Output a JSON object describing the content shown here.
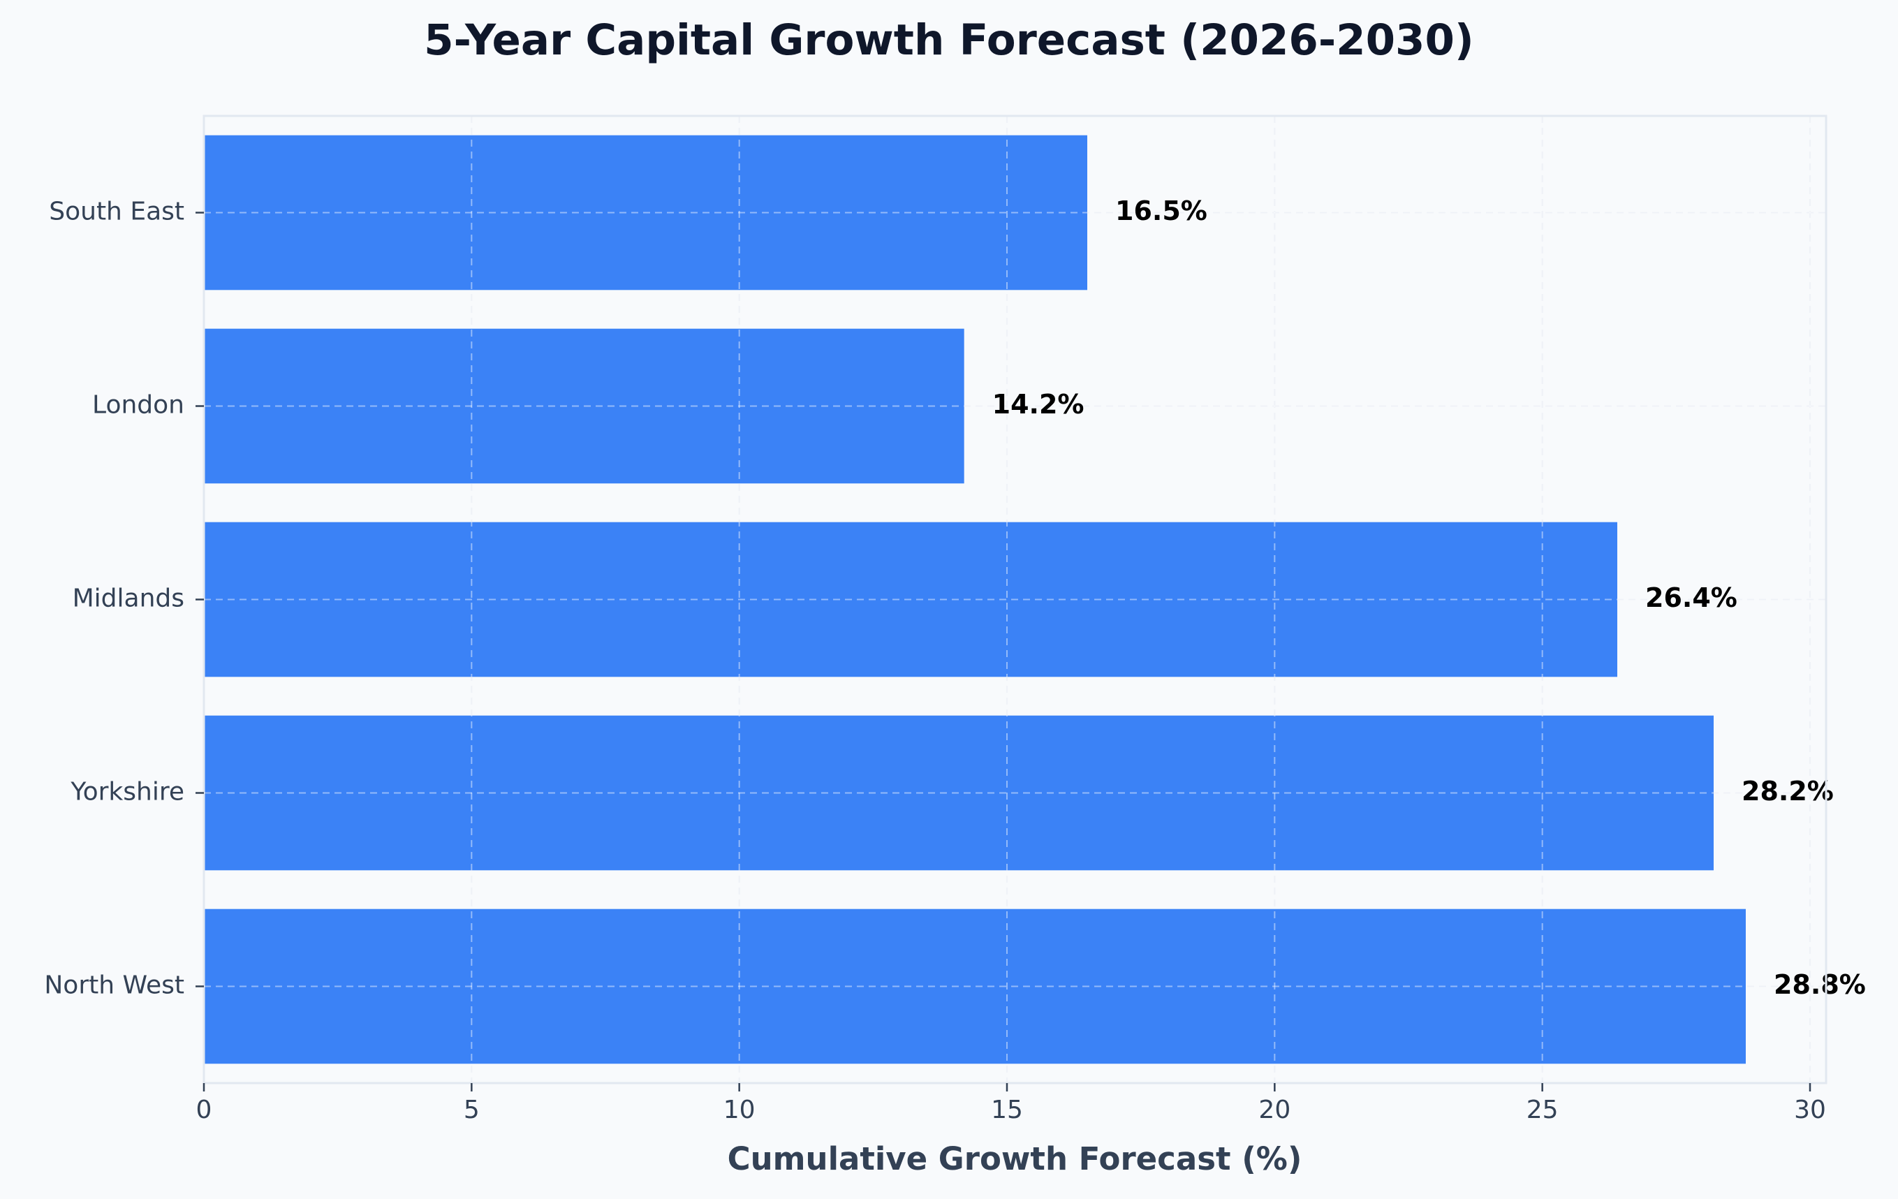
{
  "chart_data": {
    "type": "bar",
    "orientation": "horizontal",
    "title": "5-Year Capital Growth Forecast (2026-2030)",
    "xlabel": "Cumulative Growth Forecast (%)",
    "ylabel": "",
    "categories": [
      "North West",
      "Yorkshire",
      "Midlands",
      "London",
      "South East"
    ],
    "values": [
      28.8,
      28.2,
      26.4,
      14.2,
      16.5
    ],
    "data_labels": [
      "28.8%",
      "28.2%",
      "26.4%",
      "14.2%",
      "16.5%"
    ],
    "xlim": [
      0,
      30.3
    ],
    "xticks": [
      0,
      5,
      10,
      15,
      20,
      25,
      30
    ],
    "xtick_labels": [
      "0",
      "5",
      "10",
      "15",
      "20",
      "25",
      "30"
    ],
    "grid": true,
    "legend": "none",
    "colors": {
      "bar": "#3b82f6",
      "background": "#f8fafc",
      "title": "#0f172a",
      "text": "#334155"
    }
  }
}
